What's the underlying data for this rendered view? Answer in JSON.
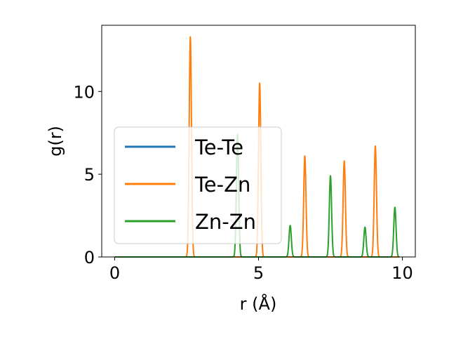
{
  "chart_data": {
    "type": "line",
    "title": "",
    "xlabel": "r (Å)",
    "ylabel": "g(r)",
    "xlim": [
      -0.45,
      10.45
    ],
    "ylim": [
      0,
      14
    ],
    "xticks": [
      0,
      5,
      10
    ],
    "yticks": [
      0,
      5,
      10
    ],
    "grid": false,
    "legend_position": "center-left",
    "line_width": 2,
    "series": [
      {
        "name": "Te-Te",
        "color": "#1f77b4",
        "peaks": []
      },
      {
        "name": "Te-Zn",
        "color": "#ff7f0e",
        "peaks": [
          {
            "r": 2.63,
            "g": 13.3
          },
          {
            "r": 5.04,
            "g": 10.5
          },
          {
            "r": 6.61,
            "g": 6.1
          },
          {
            "r": 7.98,
            "g": 5.8
          },
          {
            "r": 9.06,
            "g": 6.7
          }
        ]
      },
      {
        "name": "Zn-Zn",
        "color": "#2ca02c",
        "peaks": [
          {
            "r": 4.27,
            "g": 7.4
          },
          {
            "r": 6.1,
            "g": 1.9
          },
          {
            "r": 7.5,
            "g": 4.9
          },
          {
            "r": 8.7,
            "g": 1.8
          },
          {
            "r": 9.74,
            "g": 3.0
          }
        ]
      }
    ]
  }
}
